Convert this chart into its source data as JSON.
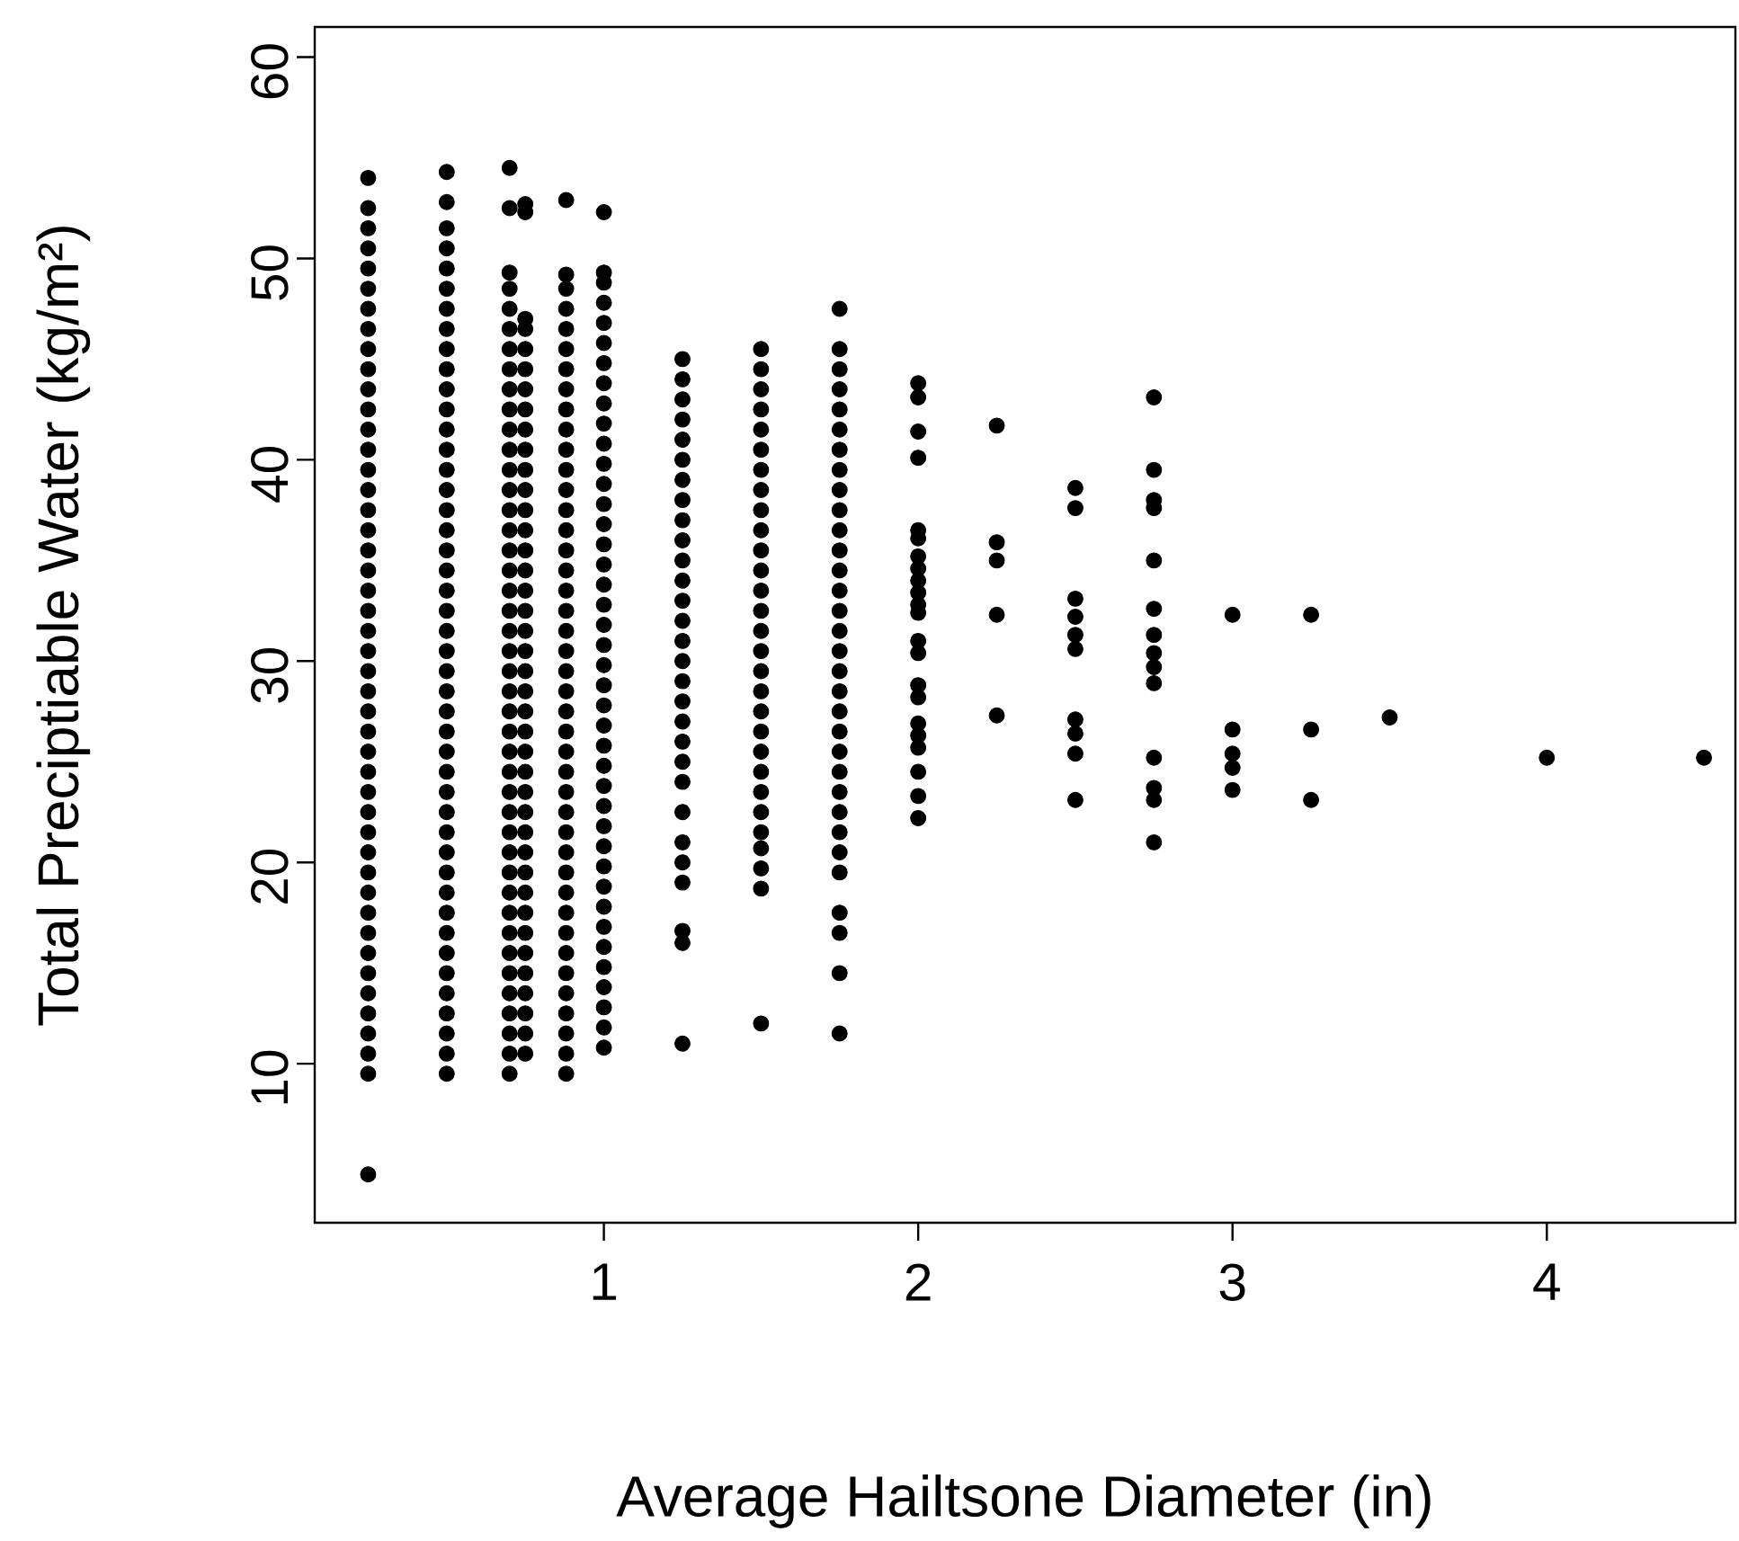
{
  "chart_data": {
    "type": "scatter",
    "xlabel": "Average Hailtsone Diameter (in)",
    "ylabel": "Total Preciptiable Water (kg/m²)",
    "xlim": [
      0.08,
      4.6
    ],
    "ylim": [
      2.1,
      61.5
    ],
    "xticks": [
      1,
      2,
      3,
      4
    ],
    "yticks": [
      10,
      20,
      30,
      40,
      50,
      60
    ],
    "marker": "circle",
    "series": [
      {
        "color": "#000000",
        "x": [
          0.25,
          0.25,
          0.25,
          0.25,
          0.25,
          0.25,
          0.25,
          0.25,
          0.25,
          0.25,
          0.25,
          0.25,
          0.25,
          0.25,
          0.25,
          0.25,
          0.25,
          0.25,
          0.25,
          0.25,
          0.25,
          0.25,
          0.25,
          0.25,
          0.25,
          0.25,
          0.25,
          0.25,
          0.25,
          0.25,
          0.25,
          0.25,
          0.25,
          0.25,
          0.25,
          0.25,
          0.25,
          0.25,
          0.25,
          0.25,
          0.25,
          0.25,
          0.25,
          0.25,
          0.25,
          0.25
        ],
        "values": [
          4.5,
          9.5,
          10.5,
          11.5,
          12.5,
          13.5,
          14.5,
          15.5,
          16.5,
          17.5,
          18.5,
          19.5,
          20.5,
          21.5,
          22.5,
          23.5,
          24.5,
          25.5,
          26.5,
          27.5,
          28.5,
          29.5,
          30.5,
          31.5,
          32.5,
          33.5,
          34.5,
          35.5,
          36.5,
          37.5,
          38.5,
          39.5,
          40.5,
          41.5,
          42.5,
          43.5,
          44.5,
          45.5,
          46.5,
          47.5,
          48.5,
          49.5,
          50.5,
          51.5,
          52.5,
          54.0
        ]
      },
      {
        "color": "#000000",
        "x": [
          0.5,
          0.5,
          0.5,
          0.5,
          0.5,
          0.5,
          0.5,
          0.5,
          0.5,
          0.5,
          0.5,
          0.5,
          0.5,
          0.5,
          0.5,
          0.5,
          0.5,
          0.5,
          0.5,
          0.5,
          0.5,
          0.5,
          0.5,
          0.5,
          0.5,
          0.5,
          0.5,
          0.5,
          0.5,
          0.5,
          0.5,
          0.5,
          0.5,
          0.5,
          0.5,
          0.5,
          0.5,
          0.5,
          0.5,
          0.5,
          0.5,
          0.5,
          0.5,
          0.5,
          0.5
        ],
        "values": [
          9.5,
          10.5,
          11.5,
          12.5,
          13.5,
          14.5,
          15.5,
          16.5,
          17.5,
          18.5,
          19.5,
          20.5,
          21.5,
          22.5,
          23.5,
          24.5,
          25.5,
          26.5,
          27.5,
          28.5,
          29.5,
          30.5,
          31.5,
          32.5,
          33.5,
          34.5,
          35.5,
          36.5,
          37.5,
          38.5,
          39.5,
          40.5,
          41.5,
          42.5,
          43.5,
          44.5,
          45.5,
          46.5,
          47.5,
          48.5,
          49.5,
          50.5,
          51.5,
          52.8,
          54.3
        ]
      },
      {
        "color": "#000000",
        "x": [
          0.7,
          0.7,
          0.7,
          0.7,
          0.7,
          0.7,
          0.7,
          0.7,
          0.7,
          0.7,
          0.7,
          0.7,
          0.7,
          0.7,
          0.7,
          0.7,
          0.7,
          0.7,
          0.7,
          0.7,
          0.7,
          0.7,
          0.7,
          0.7,
          0.7,
          0.7,
          0.7,
          0.7,
          0.7,
          0.7,
          0.7,
          0.7,
          0.7,
          0.7,
          0.7,
          0.7,
          0.7,
          0.7,
          0.7,
          0.7,
          0.7,
          0.7,
          0.7
        ],
        "values": [
          9.5,
          10.5,
          11.5,
          12.5,
          13.5,
          14.5,
          15.5,
          16.5,
          17.5,
          18.5,
          19.5,
          20.5,
          21.5,
          22.5,
          23.5,
          24.5,
          25.5,
          26.5,
          27.5,
          28.5,
          29.5,
          30.5,
          31.5,
          32.5,
          33.5,
          34.5,
          35.5,
          36.5,
          37.5,
          38.5,
          39.5,
          40.5,
          41.5,
          42.5,
          43.5,
          44.5,
          45.5,
          46.5,
          47.5,
          48.5,
          49.3,
          52.5,
          54.5
        ]
      },
      {
        "color": "#000000",
        "x": [
          0.75,
          0.75,
          0.75,
          0.75,
          0.75,
          0.75,
          0.75,
          0.75,
          0.75,
          0.75,
          0.75,
          0.75,
          0.75,
          0.75,
          0.75,
          0.75,
          0.75,
          0.75,
          0.75,
          0.75,
          0.75,
          0.75,
          0.75,
          0.75,
          0.75,
          0.75,
          0.75,
          0.75,
          0.75,
          0.75,
          0.75,
          0.75,
          0.75,
          0.75,
          0.75,
          0.75,
          0.75,
          0.75,
          0.75,
          0.75
        ],
        "values": [
          10.5,
          11.5,
          12.5,
          13.5,
          14.5,
          15.5,
          16.5,
          17.5,
          18.5,
          19.5,
          20.5,
          21.5,
          22.5,
          23.5,
          24.5,
          25.5,
          26.5,
          27.5,
          28.5,
          29.5,
          30.5,
          31.5,
          32.5,
          33.5,
          34.5,
          35.5,
          36.5,
          37.5,
          38.5,
          39.5,
          40.5,
          41.5,
          42.5,
          43.5,
          44.5,
          45.5,
          46.5,
          47.0,
          52.3,
          52.7
        ]
      },
      {
        "color": "#000000",
        "x": [
          0.88,
          0.88,
          0.88,
          0.88,
          0.88,
          0.88,
          0.88,
          0.88,
          0.88,
          0.88,
          0.88,
          0.88,
          0.88,
          0.88,
          0.88,
          0.88,
          0.88,
          0.88,
          0.88,
          0.88,
          0.88,
          0.88,
          0.88,
          0.88,
          0.88,
          0.88,
          0.88,
          0.88,
          0.88,
          0.88,
          0.88,
          0.88,
          0.88,
          0.88,
          0.88,
          0.88,
          0.88,
          0.88,
          0.88,
          0.88,
          0.88,
          0.88
        ],
        "values": [
          9.5,
          10.5,
          11.5,
          12.5,
          13.5,
          14.5,
          15.5,
          16.5,
          17.5,
          18.5,
          19.5,
          20.5,
          21.5,
          22.5,
          23.5,
          24.5,
          25.5,
          26.5,
          27.5,
          28.5,
          29.5,
          30.5,
          31.5,
          32.5,
          33.5,
          34.5,
          35.5,
          36.5,
          37.5,
          38.5,
          39.5,
          40.5,
          41.5,
          42.5,
          43.5,
          44.5,
          45.5,
          46.5,
          47.5,
          48.5,
          49.2,
          52.9
        ]
      },
      {
        "color": "#000000",
        "x": [
          1.0,
          1.0,
          1.0,
          1.0,
          1.0,
          1.0,
          1.0,
          1.0,
          1.0,
          1.0,
          1.0,
          1.0,
          1.0,
          1.0,
          1.0,
          1.0,
          1.0,
          1.0,
          1.0,
          1.0,
          1.0,
          1.0,
          1.0,
          1.0,
          1.0,
          1.0,
          1.0,
          1.0,
          1.0,
          1.0,
          1.0,
          1.0,
          1.0,
          1.0,
          1.0,
          1.0,
          1.0,
          1.0,
          1.0,
          1.0,
          1.0
        ],
        "values": [
          10.8,
          11.8,
          12.8,
          13.8,
          14.8,
          15.8,
          16.8,
          17.8,
          18.8,
          19.8,
          20.8,
          21.8,
          22.8,
          23.8,
          24.8,
          25.8,
          26.8,
          27.8,
          28.8,
          29.8,
          30.8,
          31.8,
          32.8,
          33.8,
          34.8,
          35.8,
          36.8,
          37.8,
          38.8,
          39.8,
          40.8,
          41.8,
          42.8,
          43.8,
          44.8,
          45.8,
          46.8,
          47.8,
          48.8,
          49.3,
          52.3
        ]
      },
      {
        "color": "#000000",
        "x": [
          1.25,
          1.25,
          1.25,
          1.25,
          1.25,
          1.25,
          1.25,
          1.25,
          1.25,
          1.25,
          1.25,
          1.25,
          1.25,
          1.25,
          1.25,
          1.25,
          1.25,
          1.25,
          1.25,
          1.25,
          1.25,
          1.25,
          1.25,
          1.25,
          1.25,
          1.25,
          1.25,
          1.25,
          1.25
        ],
        "values": [
          11.0,
          16.0,
          16.6,
          19.0,
          20.0,
          21.0,
          22.5,
          24,
          25,
          26,
          27,
          28,
          29,
          30,
          31,
          32,
          33,
          34,
          35,
          36,
          37,
          38,
          39,
          40,
          41,
          42,
          43,
          44,
          45
        ]
      },
      {
        "color": "#000000",
        "x": [
          1.5,
          1.5,
          1.5,
          1.5,
          1.5,
          1.5,
          1.5,
          1.5,
          1.5,
          1.5,
          1.5,
          1.5,
          1.5,
          1.5,
          1.5,
          1.5,
          1.5,
          1.5,
          1.5,
          1.5,
          1.5,
          1.5,
          1.5,
          1.5,
          1.5,
          1.5,
          1.5,
          1.5,
          1.5
        ],
        "values": [
          12.0,
          18.7,
          19.7,
          20.7,
          21.5,
          22.5,
          23.5,
          24.5,
          25.5,
          26.5,
          27.5,
          28.5,
          29.5,
          30.5,
          31.5,
          32.5,
          33.5,
          34.5,
          35.5,
          36.5,
          37.5,
          38.5,
          39.5,
          40.5,
          41.5,
          42.5,
          43.5,
          44.5,
          45.5
        ]
      },
      {
        "color": "#000000",
        "x": [
          1.75,
          1.75,
          1.75,
          1.75,
          1.75,
          1.75,
          1.75,
          1.75,
          1.75,
          1.75,
          1.75,
          1.75,
          1.75,
          1.75,
          1.75,
          1.75,
          1.75,
          1.75,
          1.75,
          1.75,
          1.75,
          1.75,
          1.75,
          1.75,
          1.75,
          1.75,
          1.75,
          1.75,
          1.75,
          1.75,
          1.75,
          1.75
        ],
        "values": [
          11.5,
          14.5,
          16.5,
          17.5,
          19.5,
          20.5,
          21.5,
          22.5,
          23.5,
          24.5,
          25.5,
          26.5,
          27.5,
          28.5,
          29.5,
          30.5,
          31.5,
          32.5,
          33.5,
          34.5,
          35.5,
          36.5,
          37.5,
          38.5,
          39.5,
          40.5,
          41.5,
          42.5,
          43.5,
          44.5,
          45.5,
          47.5
        ]
      },
      {
        "color": "#000000",
        "x": [
          2,
          2,
          2,
          2,
          2,
          2,
          2,
          2,
          2,
          2,
          2,
          2,
          2,
          2,
          2,
          2,
          2,
          2,
          2,
          2,
          2,
          2
        ],
        "values": [
          43.8,
          43.1,
          41.4,
          40.1,
          36.5,
          36.1,
          35.2,
          34.6,
          34.0,
          33.4,
          32.8,
          32.4,
          31.0,
          30.4,
          28.8,
          28.2,
          26.9,
          26.3,
          25.7,
          24.5,
          23.3,
          22.2
        ]
      },
      {
        "color": "#000000",
        "x": [
          2.25,
          2.25,
          2.25,
          2.25,
          2.25
        ],
        "values": [
          41.7,
          35.9,
          35.0,
          32.3,
          27.3
        ]
      },
      {
        "color": "#000000",
        "x": [
          2.5,
          2.5,
          2.5,
          2.5,
          2.5,
          2.5,
          2.5,
          2.5,
          2.5,
          2.5
        ],
        "values": [
          38.6,
          37.6,
          33.1,
          32.2,
          31.3,
          30.6,
          27.1,
          26.4,
          25.4,
          23.1
        ]
      },
      {
        "color": "#000000",
        "x": [
          2.75,
          2.75,
          2.75,
          2.75,
          2.75,
          2.75,
          2.75,
          2.75,
          2.75,
          2.75,
          2.75,
          2.75,
          2.75,
          2.75
        ],
        "values": [
          43.1,
          39.5,
          38.0,
          37.6,
          35.0,
          32.6,
          31.3,
          30.4,
          29.7,
          28.9,
          25.2,
          23.7,
          23.1,
          21.0
        ]
      },
      {
        "color": "#000000",
        "x": [
          3,
          3,
          3,
          3,
          3
        ],
        "values": [
          32.3,
          26.6,
          25.4,
          24.7,
          23.6
        ]
      },
      {
        "color": "#000000",
        "x": [
          3.25,
          3.25,
          3.25
        ],
        "values": [
          32.3,
          26.6,
          23.1
        ]
      },
      {
        "color": "#000000",
        "x": [
          3.5,
          4,
          4.5
        ],
        "values": [
          27.2,
          25.2,
          25.2
        ]
      }
    ]
  }
}
